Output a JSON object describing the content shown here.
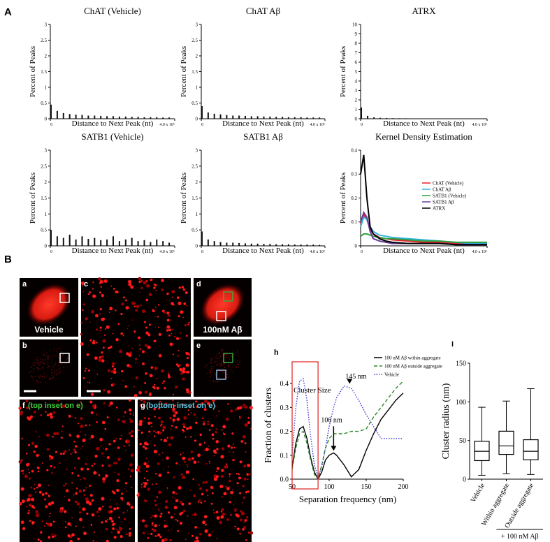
{
  "panel_labels": [
    "A",
    "B"
  ],
  "micrographs": [
    {
      "letter": "a",
      "label": "Vehicle"
    },
    {
      "letter": "b"
    },
    {
      "letter": "c"
    },
    {
      "letter": "d",
      "label": "100nM Aβ"
    },
    {
      "letter": "e"
    },
    {
      "letter": "f",
      "label": "(top inset on e)"
    },
    {
      "letter": "g",
      "label": "(bottom inset on e)"
    }
  ],
  "chart_data": [
    {
      "type": "spikes",
      "title": "ChAT (Vehicle)",
      "xlabel": "Distance to Next Peak (nt)",
      "ylabel": "Percent of Peaks",
      "color": "#111111",
      "x": [
        0,
        200000,
        400000,
        600000,
        800000,
        1000000,
        1200000,
        1400000,
        1600000,
        1800000,
        2000000,
        2200000,
        2400000,
        2600000,
        2800000,
        3000000,
        3200000,
        3400000,
        3600000,
        3800000
      ],
      "values": [
        0.45,
        0.25,
        0.18,
        0.15,
        0.13,
        0.12,
        0.1,
        0.1,
        0.09,
        0.08,
        0.08,
        0.07,
        0.07,
        0.06,
        0.06,
        0.05,
        0.05,
        0.05,
        0.04,
        0.04
      ],
      "xlim": [
        0,
        4000000
      ],
      "xticks": [
        0,
        {
          "value": 4000000,
          "label": "4.0 x 10⁶"
        }
      ],
      "ylim": [
        0,
        3
      ],
      "yticks": [
        0,
        0.5,
        1,
        1.5,
        2,
        2.5,
        3
      ]
    },
    {
      "type": "spikes",
      "title": "ChAT Aβ",
      "xlabel": "Distance to Next Peak (nt)",
      "ylabel": "Percent of Peaks",
      "color": "#111111",
      "x": [
        0,
        200000,
        400000,
        600000,
        800000,
        1000000,
        1200000,
        1400000,
        1600000,
        1800000,
        2000000,
        2200000,
        2400000,
        2600000,
        2800000,
        3000000,
        3200000,
        3400000,
        3600000,
        3800000
      ],
      "values": [
        0.4,
        0.2,
        0.16,
        0.14,
        0.12,
        0.1,
        0.1,
        0.09,
        0.08,
        0.08,
        0.07,
        0.07,
        0.06,
        0.06,
        0.05,
        0.05,
        0.05,
        0.04,
        0.04,
        0.04
      ],
      "xlim": [
        0,
        4000000
      ],
      "xticks": [
        0,
        {
          "value": 4000000,
          "label": "4.0 x 10⁶"
        }
      ],
      "ylim": [
        0,
        3
      ],
      "yticks": [
        0,
        0.5,
        1,
        1.5,
        2,
        2.5,
        3
      ]
    },
    {
      "type": "spikes",
      "title": "ATRX",
      "xlabel": "Distance to Next Peak (nt)",
      "ylabel": "Percent of Peaks",
      "color": "#111111",
      "x": [
        0,
        200000,
        400000,
        600000,
        800000,
        1000000,
        1200000,
        1400000,
        1600000,
        1800000,
        2000000,
        2200000,
        2400000,
        2600000,
        2800000,
        3000000,
        3200000,
        3400000,
        3600000,
        3800000
      ],
      "values": [
        1.2,
        0.3,
        0.15,
        0.1,
        0.08,
        0.06,
        0.05,
        0.05,
        0.04,
        0.04,
        0.03,
        0.03,
        0.03,
        0.03,
        0.02,
        0.02,
        0.02,
        0.02,
        0.02,
        0.02
      ],
      "xlim": [
        0,
        4000000
      ],
      "xticks": [
        0,
        {
          "value": 4000000,
          "label": "4.0 x 10⁶"
        }
      ],
      "ylim": [
        0,
        10
      ],
      "yticks": [
        0,
        1,
        2,
        3,
        4,
        5,
        6,
        7,
        8,
        9,
        10
      ]
    },
    {
      "type": "spikes",
      "title": "SATB1 (Vehicle)",
      "xlabel": "Distance to Next Peak (nt)",
      "ylabel": "Percent of Peaks",
      "color": "#111111",
      "x": [
        0,
        200000,
        400000,
        600000,
        800000,
        1000000,
        1200000,
        1400000,
        1600000,
        1800000,
        2000000,
        2200000,
        2400000,
        2600000,
        2800000,
        3000000,
        3200000,
        3400000,
        3600000,
        3800000
      ],
      "values": [
        0.5,
        0.3,
        0.25,
        0.35,
        0.2,
        0.3,
        0.22,
        0.25,
        0.18,
        0.2,
        0.3,
        0.15,
        0.2,
        0.25,
        0.15,
        0.18,
        0.12,
        0.2,
        0.15,
        0.1
      ],
      "xlim": [
        0,
        4000000
      ],
      "xticks": [
        0,
        {
          "value": 4000000,
          "label": "4.0 x 10⁶"
        }
      ],
      "ylim": [
        0,
        3
      ],
      "yticks": [
        0,
        0.5,
        1,
        1.5,
        2,
        2.5,
        3
      ]
    },
    {
      "type": "spikes",
      "title": "SATB1 Aβ",
      "xlabel": "Distance to Next Peak (nt)",
      "ylabel": "Percent of Peaks",
      "color": "#111111",
      "x": [
        0,
        200000,
        400000,
        600000,
        800000,
        1000000,
        1200000,
        1400000,
        1600000,
        1800000,
        2000000,
        2200000,
        2400000,
        2600000,
        2800000,
        3000000,
        3200000,
        3400000,
        3600000,
        3800000
      ],
      "values": [
        0.45,
        0.2,
        0.15,
        0.12,
        0.1,
        0.1,
        0.09,
        0.08,
        0.07,
        0.07,
        0.06,
        0.06,
        0.05,
        0.05,
        0.05,
        0.04,
        0.04,
        0.04,
        0.04,
        0.03
      ],
      "xlim": [
        0,
        4000000
      ],
      "xticks": [
        0,
        {
          "value": 4000000,
          "label": "4.0 x 10⁶"
        }
      ],
      "ylim": [
        0,
        3
      ],
      "yticks": [
        0,
        0.5,
        1,
        1.5,
        2,
        2.5,
        3
      ]
    },
    {
      "type": "line",
      "title": "Kernel Density Estimation",
      "xlabel": "Distance to Next Peak (nt)",
      "ylabel": "Percent of Peaks",
      "x": [
        0,
        100000,
        200000,
        300000,
        400000,
        600000,
        800000,
        1000000,
        1500000,
        2000000,
        2500000,
        3000000,
        3500000,
        4000000
      ],
      "series": [
        {
          "name": "ChAT (Vehicle)",
          "color": "#e8202a",
          "dash": "solid",
          "values": [
            0.09,
            0.13,
            0.11,
            0.07,
            0.05,
            0.035,
            0.03,
            0.025,
            0.02,
            0.015,
            0.015,
            0.01,
            0.01,
            0.01
          ]
        },
        {
          "name": "ChAT Aβ",
          "color": "#35b3e0",
          "dash": "solid",
          "values": [
            0.08,
            0.12,
            0.11,
            0.08,
            0.06,
            0.045,
            0.04,
            0.035,
            0.03,
            0.025,
            0.02,
            0.015,
            0.01,
            0.01
          ]
        },
        {
          "name": "SATB1 (Vehicle)",
          "color": "#2ea043",
          "dash": "solid",
          "values": [
            0.04,
            0.05,
            0.05,
            0.045,
            0.04,
            0.035,
            0.03,
            0.03,
            0.025,
            0.02,
            0.02,
            0.015,
            0.015,
            0.015
          ]
        },
        {
          "name": "SATB1 Aβ",
          "color": "#6a3d9a",
          "dash": "solid",
          "values": [
            0.1,
            0.14,
            0.12,
            0.06,
            0.03,
            0.02,
            0.015,
            0.01,
            0.01,
            0.01,
            0.01,
            0.005,
            0.005,
            0.005
          ]
        },
        {
          "name": "ATRX",
          "color": "#000000",
          "dash": "solid",
          "values": [
            0.3,
            0.38,
            0.2,
            0.08,
            0.05,
            0.03,
            0.02,
            0.015,
            0.01,
            0.01,
            0.01,
            0.005,
            0.005,
            0.005
          ]
        }
      ],
      "xlim": [
        0,
        4000000
      ],
      "xticks": [
        0,
        {
          "value": 4000000,
          "label": "4.0 x 10⁶"
        }
      ],
      "ylim": [
        0,
        0.4
      ],
      "yticks": [
        0,
        0.1,
        0.2,
        0.3,
        0.4
      ],
      "legend": "right"
    },
    {
      "type": "line",
      "panel": "h",
      "xlabel": "Separation frequency (nm)",
      "ylabel": "Fraction of clusters",
      "x": [
        50,
        55,
        60,
        65,
        70,
        75,
        80,
        85,
        90,
        95,
        100,
        106,
        110,
        120,
        130,
        140,
        150,
        160,
        170,
        180,
        190,
        200
      ],
      "series": [
        {
          "name": "100 nM Aβ within aggregate",
          "color": "#000000",
          "dash": "solid",
          "values": [
            0.05,
            0.15,
            0.21,
            0.22,
            0.17,
            0.09,
            0.03,
            0.0,
            0.03,
            0.08,
            0.1,
            0.11,
            0.1,
            0.06,
            0.01,
            0.04,
            0.12,
            0.19,
            0.25,
            0.29,
            0.33,
            0.36
          ]
        },
        {
          "name": "100 nM Aβ outside aggregate",
          "color": "#2a8a2a",
          "dash": "dashed",
          "values": [
            0.04,
            0.13,
            0.19,
            0.2,
            0.15,
            0.08,
            0.02,
            0.0,
            0.06,
            0.13,
            0.17,
            0.19,
            0.19,
            0.19,
            0.2,
            0.2,
            0.21,
            0.26,
            0.3,
            0.34,
            0.38,
            0.41
          ]
        },
        {
          "name": "Vehicle",
          "color": "#3a3ad8",
          "dash": "dotted",
          "values": [
            0.1,
            0.3,
            0.41,
            0.42,
            0.33,
            0.18,
            0.06,
            0.01,
            0.05,
            0.13,
            0.22,
            0.3,
            0.34,
            0.39,
            0.38,
            0.33,
            0.27,
            0.22,
            0.17,
            0.17,
            0.17,
            0.17
          ]
        }
      ],
      "annotations": [
        "Cluster Size",
        "145 nm",
        "106 nm"
      ],
      "xlim": [
        50,
        200
      ],
      "xticks": [
        50,
        100,
        150,
        200
      ],
      "ylim": [
        0,
        0.45
      ],
      "yticks": [
        {
          "value": 0,
          "label": "0.0"
        },
        0.1,
        0.2,
        0.3,
        0.4
      ],
      "legend": "top-right"
    },
    {
      "type": "box",
      "panel": "i",
      "ylabel": "Cluster radius (nm)",
      "group_label": "+ 100 nM Aβ",
      "categories": [
        "Vehicle",
        "Within aggregate",
        "Outside aggregate"
      ],
      "boxes": [
        {
          "min": 5,
          "q1": 24,
          "median": 36,
          "q3": 49,
          "max": 93
        },
        {
          "min": 7,
          "q1": 32,
          "median": 43,
          "q3": 62,
          "max": 101
        },
        {
          "min": 6,
          "q1": 25,
          "median": 36,
          "q3": 51,
          "max": 117
        }
      ],
      "ylim": [
        0,
        150
      ],
      "yticks": [
        0,
        50,
        100,
        150
      ]
    }
  ]
}
